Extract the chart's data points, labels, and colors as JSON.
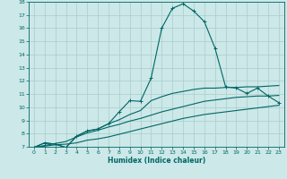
{
  "bg_color": "#cce8e8",
  "grid_color": "#aacccc",
  "line_color": "#006666",
  "xlabel": "Humidex (Indice chaleur)",
  "xlim": [
    -0.5,
    23.5
  ],
  "ylim": [
    7,
    18
  ],
  "xticks": [
    0,
    1,
    2,
    3,
    4,
    5,
    6,
    7,
    8,
    9,
    10,
    11,
    12,
    13,
    14,
    15,
    16,
    17,
    18,
    19,
    20,
    21,
    22,
    23
  ],
  "yticks": [
    7,
    8,
    9,
    10,
    11,
    12,
    13,
    14,
    15,
    16,
    17,
    18
  ],
  "line1_x": [
    0,
    1,
    2,
    3,
    4,
    5,
    6,
    7,
    8,
    9,
    10,
    11,
    12,
    13,
    14,
    15,
    16,
    17,
    18,
    19,
    20,
    21,
    22,
    23
  ],
  "line1_y": [
    6.95,
    7.3,
    7.2,
    6.95,
    7.8,
    8.2,
    8.35,
    8.75,
    9.65,
    10.5,
    10.45,
    12.2,
    16.0,
    17.5,
    17.85,
    17.3,
    16.5,
    14.5,
    11.55,
    11.45,
    11.05,
    11.45,
    10.85,
    10.35
  ],
  "line2_x": [
    0,
    1,
    2,
    3,
    4,
    5,
    6,
    7,
    8,
    9,
    10,
    11,
    12,
    13,
    14,
    15,
    16,
    17,
    18,
    19,
    20,
    21,
    22,
    23
  ],
  "line2_y": [
    6.95,
    7.3,
    7.2,
    6.95,
    7.8,
    8.2,
    8.35,
    8.75,
    9.05,
    9.45,
    9.75,
    10.5,
    10.8,
    11.05,
    11.2,
    11.35,
    11.45,
    11.45,
    11.5,
    11.5,
    11.55,
    11.55,
    11.6,
    11.65
  ],
  "line3_x": [
    0,
    1,
    2,
    3,
    4,
    5,
    6,
    7,
    8,
    9,
    10,
    11,
    12,
    13,
    14,
    15,
    16,
    17,
    18,
    19,
    20,
    21,
    22,
    23
  ],
  "line3_y": [
    6.95,
    7.1,
    7.25,
    7.4,
    7.75,
    8.05,
    8.25,
    8.5,
    8.7,
    8.95,
    9.15,
    9.4,
    9.65,
    9.85,
    10.05,
    10.25,
    10.45,
    10.55,
    10.65,
    10.75,
    10.8,
    10.85,
    10.85,
    10.9
  ],
  "line4_x": [
    0,
    1,
    2,
    3,
    4,
    5,
    6,
    7,
    8,
    9,
    10,
    11,
    12,
    13,
    14,
    15,
    16,
    17,
    18,
    19,
    20,
    21,
    22,
    23
  ],
  "line4_y": [
    6.95,
    7.05,
    7.15,
    7.2,
    7.3,
    7.5,
    7.6,
    7.75,
    7.95,
    8.15,
    8.35,
    8.55,
    8.75,
    8.95,
    9.15,
    9.3,
    9.45,
    9.55,
    9.65,
    9.75,
    9.85,
    9.95,
    10.05,
    10.15
  ]
}
